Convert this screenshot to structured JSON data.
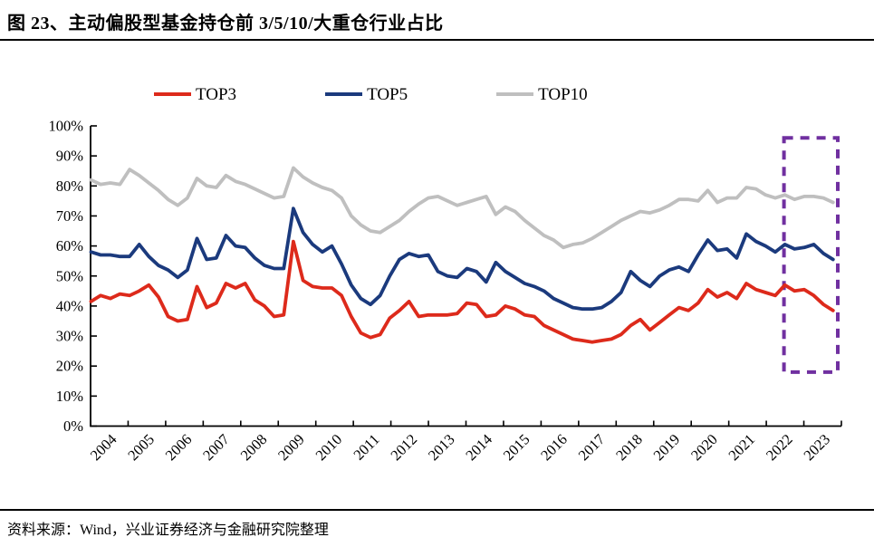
{
  "header": {
    "title": "图 23、主动偏股型基金持仓前 3/5/10/大重仓行业占比"
  },
  "footer": {
    "source": "资料来源：Wind，兴业证券经济与金融研究院整理"
  },
  "chart_data": {
    "type": "line",
    "title": "",
    "xlabel": "",
    "ylabel": "",
    "frequency": "quarterly",
    "x_start": "2004Q1",
    "x_end": "2023Q2",
    "x_year_labels": [
      "2004",
      "2005",
      "2006",
      "2007",
      "2008",
      "2009",
      "2010",
      "2011",
      "2012",
      "2013",
      "2014",
      "2015",
      "2016",
      "2017",
      "2018",
      "2019",
      "2020",
      "2021",
      "2022",
      "2023"
    ],
    "y_tick_labels": [
      "100%",
      "90%",
      "80%",
      "70%",
      "60%",
      "50%",
      "40%",
      "30%",
      "20%",
      "10%",
      "0%"
    ],
    "ylim": [
      0,
      100
    ],
    "grid": false,
    "legend_position": "top",
    "axis_color": "#000000",
    "highlight_box": {
      "color": "#7030A0",
      "x_span_years": [
        "2022",
        "2023"
      ],
      "y_range_pct": [
        18,
        96
      ],
      "style": "dashed"
    },
    "series": [
      {
        "name": "TOP3",
        "color": "#DD2A1B",
        "values": [
          41.5,
          43.5,
          42.5,
          44,
          43.5,
          45,
          47,
          43,
          36.5,
          35,
          35.5,
          46.5,
          39.5,
          41,
          47.5,
          46,
          47.5,
          42,
          40,
          36.5,
          37,
          61.5,
          48.5,
          46.5,
          46,
          46,
          43.5,
          36.5,
          31,
          29.5,
          30.5,
          36,
          38.5,
          41.5,
          36.5,
          37,
          37,
          37,
          37.5,
          41,
          40.5,
          36.5,
          37,
          40,
          39,
          37,
          36.5,
          33.5,
          32,
          30.5,
          29,
          28.5,
          28,
          28.5,
          29,
          30.5,
          33.5,
          35.5,
          32,
          34.5,
          37,
          39.5,
          38.5,
          41,
          45.5,
          43,
          44.5,
          42.5,
          47.5,
          45.5,
          44.5,
          43.5,
          47,
          45,
          45.5,
          43.5,
          40.5,
          38.5
        ]
      },
      {
        "name": "TOP5",
        "color": "#1B3A7D",
        "values": [
          58,
          57,
          57,
          56.5,
          56.5,
          60.5,
          56.5,
          53.5,
          52,
          49.5,
          52,
          62.5,
          55.5,
          56,
          63.5,
          60,
          59.5,
          56,
          53.5,
          52.5,
          52.5,
          72.5,
          64.5,
          60.5,
          58,
          60,
          54,
          47,
          42.5,
          40.5,
          43.5,
          50,
          55.5,
          57.5,
          56.5,
          57,
          51.5,
          50,
          49.5,
          52.5,
          51.5,
          48,
          54.5,
          51.5,
          49.5,
          47.5,
          46.5,
          45,
          42.5,
          41,
          39.5,
          39,
          39,
          39.5,
          41.5,
          44.5,
          51.5,
          48.5,
          46.5,
          50,
          52,
          53,
          51.5,
          57,
          62,
          58.5,
          59,
          56,
          64,
          61.5,
          60,
          58,
          60.5,
          59,
          59.5,
          60.5,
          57.5,
          55.5
        ]
      },
      {
        "name": "TOP10",
        "color": "#BFBFBF",
        "values": [
          82,
          80.5,
          81,
          80.5,
          85.5,
          83.5,
          81,
          78.5,
          75.5,
          73.5,
          76,
          82.5,
          80,
          79.5,
          83.5,
          81.5,
          80.5,
          79,
          77.5,
          76,
          76.5,
          86,
          83,
          81,
          79.5,
          78.5,
          76,
          70,
          67,
          65,
          64.5,
          66.5,
          68.5,
          71.5,
          74,
          76,
          76.5,
          75,
          73.5,
          74.5,
          75.5,
          76.5,
          70.5,
          73,
          71.5,
          68.5,
          66,
          63.5,
          62,
          59.5,
          60.5,
          61,
          62.5,
          64.5,
          66.5,
          68.5,
          70,
          71.5,
          71,
          72,
          73.5,
          75.5,
          75.5,
          75,
          78.5,
          74.5,
          76,
          76,
          79.5,
          79,
          77,
          76,
          77,
          75.5,
          76.5,
          76.5,
          76,
          74.5
        ]
      }
    ]
  }
}
